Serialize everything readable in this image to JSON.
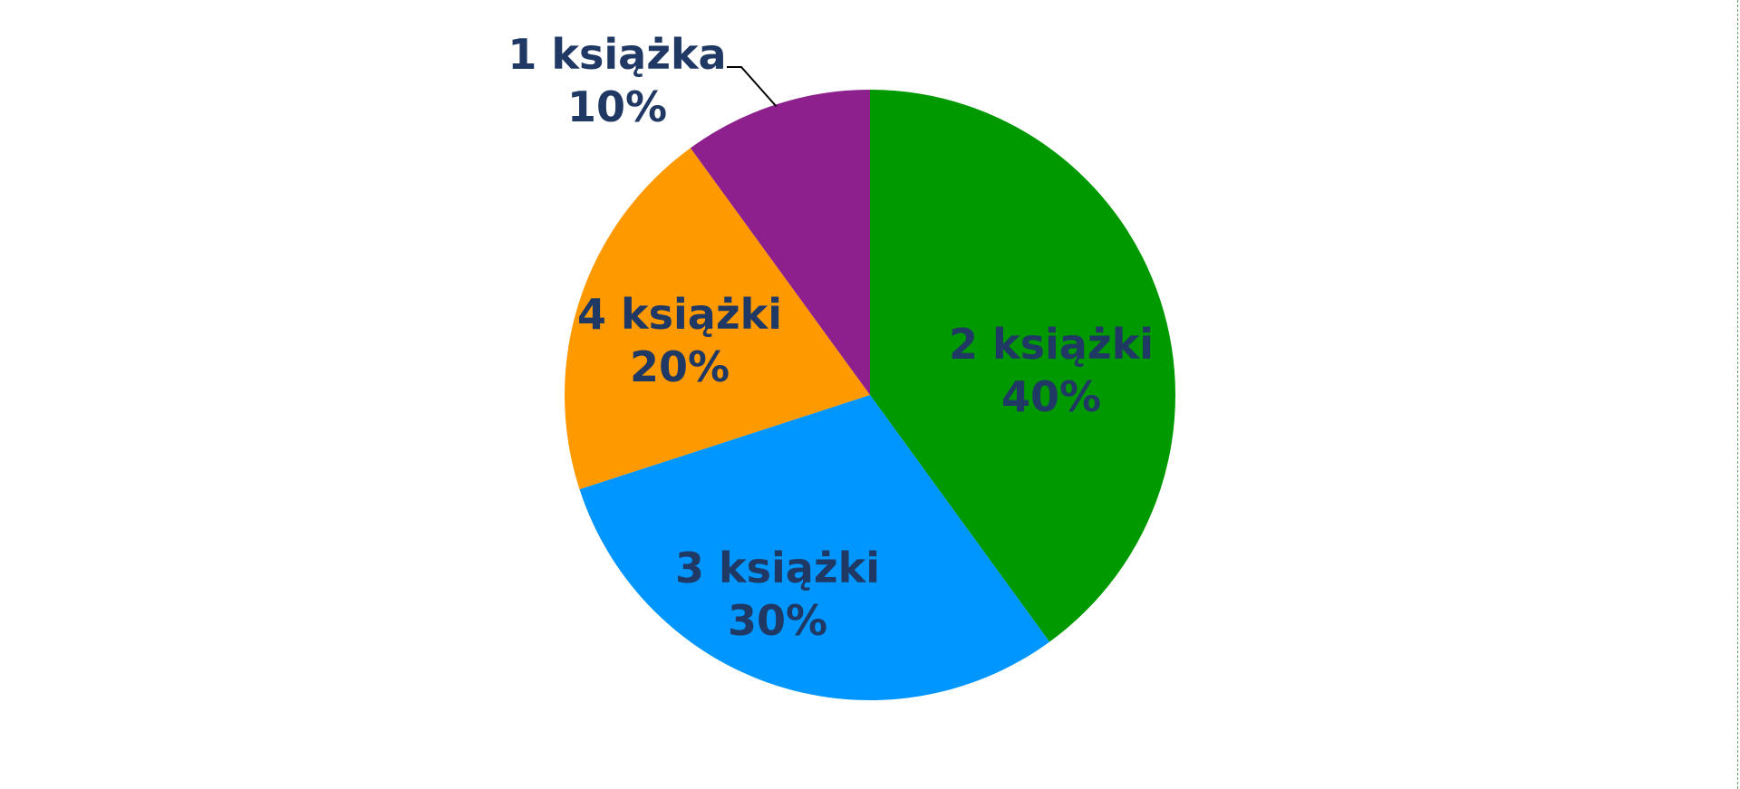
{
  "chart_data": {
    "type": "pie",
    "title": "",
    "start_angle_deg": 0,
    "direction": "clockwise",
    "label_color": "#1f3864",
    "leader_line_color": "#000000",
    "slices": [
      {
        "label": "2 książki",
        "value": 40,
        "display": "40%",
        "color": "#009900"
      },
      {
        "label": "3 książki",
        "value": 30,
        "display": "30%",
        "color": "#0096ff"
      },
      {
        "label": "4 książki",
        "value": 20,
        "display": "20%",
        "color": "#ff9900"
      },
      {
        "label": "1 książka",
        "value": 10,
        "display": "10%",
        "color": "#8e208e"
      }
    ]
  }
}
